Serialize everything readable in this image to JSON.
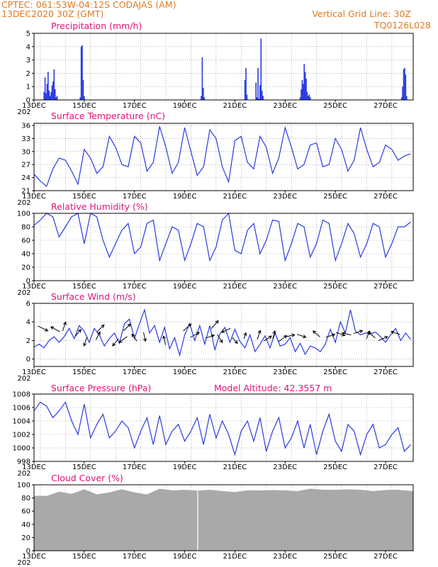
{
  "header": {
    "station": "CPTEC:   061:53W-04:12S   CODAJAS (AM)",
    "date": "13DEC2020 30Z (GMT)",
    "grid_note": "Vertical Grid Line: 30Z",
    "code": "TQ0126L028"
  },
  "colors": {
    "header": "#e07a20",
    "title": "#e0137a",
    "series": "#2a3ce0",
    "cloud": "#a9a9a9"
  },
  "x_axis": {
    "labels": [
      "13DEC",
      "15DEC",
      "17DEC",
      "19DEC",
      "21DEC",
      "23DEC",
      "25DEC",
      "27DEC"
    ],
    "label_days": [
      0,
      2,
      4,
      6,
      8,
      10,
      12,
      14
    ],
    "year_stub": "202"
  },
  "chart_data": [
    {
      "type": "bar",
      "title": "Precipitation (mm/h)",
      "ylim": [
        0,
        5
      ],
      "yticks": [
        0,
        1,
        2,
        3,
        4,
        5
      ],
      "xlim_days": [
        0,
        15.1
      ],
      "bar_width_days": 0.03,
      "x_days": [
        0.4,
        0.44,
        0.48,
        0.52,
        0.56,
        0.6,
        0.64,
        0.68,
        0.72,
        0.76,
        0.8,
        0.84,
        0.88,
        0.92,
        1.84,
        1.88,
        1.92,
        1.96,
        2.0,
        6.66,
        6.7,
        6.74,
        6.78,
        8.4,
        8.44,
        8.48,
        8.84,
        8.88,
        8.92,
        8.96,
        9.0,
        9.04,
        9.08,
        9.12,
        10.6,
        10.64,
        10.68,
        10.72,
        10.76,
        10.8,
        10.84,
        10.88,
        10.92,
        10.96,
        11.0,
        14.64,
        14.68,
        14.72,
        14.76,
        14.8,
        14.84
      ],
      "values": [
        0.6,
        1.7,
        0.5,
        1.2,
        2.1,
        0.7,
        0.3,
        0.6,
        1.1,
        1.4,
        2.3,
        0.8,
        0.2,
        0.3,
        0.2,
        4.0,
        4.1,
        1.5,
        0.3,
        0.3,
        3.2,
        0.9,
        0.2,
        1.5,
        2.4,
        0.4,
        1.3,
        0.2,
        2.4,
        0.1,
        1.1,
        4.6,
        0.7,
        0.3,
        0.2,
        0.8,
        1.5,
        1.2,
        2.7,
        2.1,
        1.6,
        0.6,
        0.3,
        0.4,
        0.2,
        0.2,
        1.0,
        2.3,
        2.4,
        1.9,
        0.3
      ]
    },
    {
      "type": "line",
      "title": "Surface Temperature (nC)",
      "ylim": [
        21,
        36.5
      ],
      "yticks": [
        21,
        24,
        27,
        30,
        33,
        36
      ],
      "xlim_days": [
        0,
        15.1
      ],
      "x_days": [
        0,
        0.25,
        0.5,
        0.75,
        1,
        1.25,
        1.5,
        1.75,
        2,
        2.25,
        2.5,
        2.75,
        3,
        3.25,
        3.5,
        3.75,
        4,
        4.25,
        4.5,
        4.75,
        5,
        5.25,
        5.5,
        5.75,
        6,
        6.25,
        6.5,
        6.75,
        7,
        7.25,
        7.5,
        7.75,
        8,
        8.25,
        8.5,
        8.75,
        9,
        9.25,
        9.5,
        9.75,
        10,
        10.25,
        10.5,
        10.75,
        11,
        11.25,
        11.5,
        11.75,
        12,
        12.25,
        12.5,
        12.75,
        13,
        13.25,
        13.5,
        13.75,
        14,
        14.25,
        14.5,
        14.75,
        15
      ],
      "values": [
        24.8,
        23.2,
        22.0,
        26.0,
        28.5,
        28.0,
        25.5,
        22.5,
        30.5,
        28.5,
        25.0,
        26.5,
        33.5,
        31.0,
        27.0,
        26.5,
        33.5,
        32.0,
        25.5,
        27.5,
        35.8,
        31.0,
        25.0,
        27.5,
        35.5,
        30.0,
        24.5,
        26.5,
        35.0,
        33.0,
        26.5,
        23.0,
        32.5,
        33.5,
        27.5,
        26.0,
        33.5,
        31.0,
        25.0,
        28.5,
        35.5,
        31.0,
        26.0,
        27.0,
        31.5,
        32.0,
        26.5,
        27.0,
        33.0,
        30.5,
        25.5,
        28.0,
        35.5,
        30.5,
        26.5,
        27.5,
        31.5,
        30.5,
        28.0,
        29.0,
        29.5
      ]
    },
    {
      "type": "line",
      "title": "Relative Humidity (%)",
      "ylim": [
        0,
        100
      ],
      "yticks": [
        0,
        20,
        40,
        60,
        80,
        100
      ],
      "xlim_days": [
        0,
        15.1
      ],
      "x_days": [
        0,
        0.25,
        0.5,
        0.75,
        1,
        1.25,
        1.5,
        1.75,
        2,
        2.25,
        2.5,
        2.75,
        3,
        3.25,
        3.5,
        3.75,
        4,
        4.25,
        4.5,
        4.75,
        5,
        5.25,
        5.5,
        5.75,
        6,
        6.25,
        6.5,
        6.75,
        7,
        7.25,
        7.5,
        7.75,
        8,
        8.25,
        8.5,
        8.75,
        9,
        9.25,
        9.5,
        9.75,
        10,
        10.25,
        10.5,
        10.75,
        11,
        11.25,
        11.5,
        11.75,
        12,
        12.25,
        12.5,
        12.75,
        13,
        13.25,
        13.5,
        13.75,
        14,
        14.25,
        14.5,
        14.75,
        15
      ],
      "values": [
        82,
        90,
        100,
        95,
        65,
        80,
        95,
        100,
        55,
        100,
        95,
        60,
        35,
        55,
        75,
        85,
        40,
        50,
        85,
        90,
        30,
        55,
        80,
        75,
        30,
        55,
        85,
        80,
        30,
        50,
        90,
        100,
        45,
        40,
        75,
        85,
        40,
        60,
        90,
        88,
        30,
        55,
        85,
        80,
        35,
        55,
        90,
        85,
        30,
        55,
        85,
        70,
        35,
        55,
        85,
        80,
        35,
        55,
        80,
        80,
        87
      ]
    },
    {
      "type": "line",
      "title": "Surface Wind (m/s)",
      "ylim": [
        -0.8,
        6
      ],
      "yticks": [
        0,
        2,
        4,
        6
      ],
      "xlim_days": [
        0,
        15.1
      ],
      "x_days": [
        0,
        0.2,
        0.4,
        0.6,
        0.8,
        1,
        1.2,
        1.4,
        1.6,
        1.8,
        2,
        2.2,
        2.4,
        2.6,
        2.8,
        3,
        3.2,
        3.4,
        3.6,
        3.8,
        4,
        4.2,
        4.4,
        4.6,
        4.8,
        5,
        5.2,
        5.4,
        5.6,
        5.8,
        6,
        6.2,
        6.4,
        6.6,
        6.8,
        7,
        7.2,
        7.4,
        7.6,
        7.8,
        8,
        8.2,
        8.4,
        8.6,
        8.8,
        9,
        9.2,
        9.4,
        9.6,
        9.8,
        10,
        10.2,
        10.4,
        10.6,
        10.8,
        11,
        11.2,
        11.4,
        11.6,
        11.8,
        12,
        12.2,
        12.4,
        12.6,
        12.8,
        13,
        13.2,
        13.4,
        13.6,
        13.8,
        14,
        14.2,
        14.4,
        14.6,
        14.8,
        15
      ],
      "values": [
        1.3,
        1.6,
        1.2,
        2.0,
        2.4,
        1.8,
        2.4,
        3.3,
        2.2,
        3.6,
        3.0,
        1.8,
        3.3,
        2.6,
        1.4,
        2.2,
        2.8,
        1.7,
        3.8,
        4.3,
        2.2,
        3.8,
        5.3,
        2.8,
        3.6,
        1.8,
        3.4,
        1.1,
        2.3,
        0.4,
        2.6,
        3.8,
        2.0,
        3.6,
        1.6,
        3.6,
        1.0,
        2.7,
        3.4,
        1.8,
        3.2,
        1.9,
        1.2,
        2.6,
        0.8,
        1.6,
        2.5,
        1.2,
        2.8,
        1.4,
        1.6,
        2.3,
        0.8,
        1.7,
        0.5,
        1.4,
        1.2,
        0.8,
        1.6,
        3.2,
        1.8,
        4.0,
        2.8,
        5.3,
        3.0,
        2.6,
        2.8,
        2.7,
        2.9,
        2.4,
        1.8,
        2.6,
        3.3,
        2.0,
        2.8,
        2.1
      ],
      "vectors": [
        {
          "x_days": 0.35,
          "y": 3.3,
          "u": 1.0,
          "v": -0.5
        },
        {
          "x_days": 0.85,
          "y": 3.2,
          "u": -0.9,
          "v": 0.5
        },
        {
          "x_days": 1.2,
          "y": 3.5,
          "u": 0.3,
          "v": 0.9
        },
        {
          "x_days": 1.75,
          "y": 2.8,
          "u": 0.6,
          "v": 0.7
        },
        {
          "x_days": 2.05,
          "y": 1.9,
          "u": -0.3,
          "v": -0.9
        },
        {
          "x_days": 2.55,
          "y": 2.5,
          "u": 0.4,
          "v": 0.8
        },
        {
          "x_days": 2.65,
          "y": 3.3,
          "u": 0.7,
          "v": 0.7
        },
        {
          "x_days": 3.25,
          "y": 1.8,
          "u": -0.6,
          "v": -0.7
        },
        {
          "x_days": 3.7,
          "y": 3.4,
          "u": 0.7,
          "v": 0.7
        },
        {
          "x_days": 3.55,
          "y": 2.1,
          "u": -0.8,
          "v": -0.6
        },
        {
          "x_days": 4.0,
          "y": 2.3,
          "u": -0.5,
          "v": 0.7
        },
        {
          "x_days": 4.4,
          "y": 2.4,
          "u": 0.2,
          "v": -0.9
        },
        {
          "x_days": 5.2,
          "y": 2.0,
          "u": -0.2,
          "v": 0.9
        },
        {
          "x_days": 6.1,
          "y": 3.4,
          "u": 0.8,
          "v": 0.7
        },
        {
          "x_days": 6.4,
          "y": 2.6,
          "u": 0.9,
          "v": 0.5
        },
        {
          "x_days": 7.0,
          "y": 2.4,
          "u": 0.9,
          "v": 0.3
        },
        {
          "x_days": 7.2,
          "y": 3.7,
          "u": 0.7,
          "v": 0.8
        },
        {
          "x_days": 7.4,
          "y": 2.2,
          "u": 0.5,
          "v": -0.8
        },
        {
          "x_days": 7.65,
          "y": 3.1,
          "u": -0.9,
          "v": -0.4
        },
        {
          "x_days": 8.0,
          "y": 2.0,
          "u": 0.5,
          "v": -0.6
        },
        {
          "x_days": 8.4,
          "y": 2.5,
          "u": 0.2,
          "v": 0.6
        },
        {
          "x_days": 8.95,
          "y": 2.6,
          "u": 0.3,
          "v": 0.9
        },
        {
          "x_days": 9.3,
          "y": 2.2,
          "u": 0.8,
          "v": 0.5
        },
        {
          "x_days": 9.55,
          "y": 2.6,
          "u": 0.2,
          "v": 0.8
        },
        {
          "x_days": 9.9,
          "y": 2.2,
          "u": 0.8,
          "v": 0.6
        },
        {
          "x_days": 10.2,
          "y": 2.5,
          "u": 0.9,
          "v": 0.2
        },
        {
          "x_days": 10.65,
          "y": 2.5,
          "u": 0.9,
          "v": -0.3
        },
        {
          "x_days": 11.25,
          "y": 2.7,
          "u": -0.7,
          "v": 0.6
        },
        {
          "x_days": 11.8,
          "y": 2.5,
          "u": 0.9,
          "v": 0.3
        },
        {
          "x_days": 12.2,
          "y": 2.7,
          "u": 0.9,
          "v": -0.3
        },
        {
          "x_days": 12.45,
          "y": 2.7,
          "u": -0.9,
          "v": 0.2
        },
        {
          "x_days": 12.9,
          "y": 2.9,
          "u": 0.9,
          "v": 0.3
        },
        {
          "x_days": 13.3,
          "y": 2.6,
          "u": 0.3,
          "v": 0.8
        },
        {
          "x_days": 13.45,
          "y": 2.6,
          "u": -0.7,
          "v": 0.6
        },
        {
          "x_days": 13.9,
          "y": 2.2,
          "u": 0.9,
          "v": 0.4
        },
        {
          "x_days": 14.4,
          "y": 2.8,
          "u": -0.9,
          "v": 0.3
        }
      ]
    },
    {
      "type": "line",
      "title": "Surface Pressure (hPa)",
      "note": "Model Altitude: 42.3557 m",
      "ylim": [
        998,
        1008
      ],
      "yticks": [
        998,
        1000,
        1002,
        1004,
        1006,
        1008
      ],
      "xlim_days": [
        0,
        15.1
      ],
      "x_days": [
        0,
        0.25,
        0.5,
        0.75,
        1,
        1.25,
        1.5,
        1.75,
        2,
        2.25,
        2.5,
        2.75,
        3,
        3.25,
        3.5,
        3.75,
        4,
        4.25,
        4.5,
        4.75,
        5,
        5.25,
        5.5,
        5.75,
        6,
        6.25,
        6.5,
        6.75,
        7,
        7.25,
        7.5,
        7.75,
        8,
        8.25,
        8.5,
        8.75,
        9,
        9.25,
        9.5,
        9.75,
        10,
        10.25,
        10.5,
        10.75,
        11,
        11.25,
        11.5,
        11.75,
        12,
        12.25,
        12.5,
        12.75,
        13,
        13.25,
        13.5,
        13.75,
        14,
        14.25,
        14.5,
        14.75,
        15
      ],
      "values": [
        1005.5,
        1006.8,
        1006.2,
        1004.5,
        1005.5,
        1006.8,
        1004.0,
        1002.0,
        1006.5,
        1001.5,
        1003.5,
        1005.0,
        1001.5,
        1002.5,
        1004.0,
        1003.0,
        1000.0,
        1002.5,
        1004.5,
        1000.5,
        1004.8,
        1000.5,
        1002.5,
        1003.5,
        1001.0,
        1002.5,
        1004.5,
        1000.5,
        1005.0,
        1001.5,
        1004.0,
        1002.0,
        999.0,
        1002.5,
        1004.0,
        1001.0,
        1004.5,
        999.5,
        1002.5,
        1004.5,
        1000.0,
        1001.5,
        1004.0,
        1000.0,
        1003.5,
        999.0,
        1002.5,
        1005.0,
        1001.0,
        999.5,
        1003.5,
        1002.5,
        999.0,
        1002.0,
        1003.5,
        1000.0,
        1000.5,
        1002.0,
        1003.0,
        999.5,
        1000.5
      ]
    },
    {
      "type": "area",
      "title": "Cloud Cover (%)",
      "ylim": [
        0,
        100
      ],
      "yticks": [
        0,
        20,
        40,
        60,
        80,
        100
      ],
      "xlim_days": [
        0,
        15.1
      ],
      "x_days": [
        0,
        0.5,
        1,
        1.5,
        2,
        2.5,
        3,
        3.5,
        4,
        4.5,
        5,
        5.5,
        6,
        6.5,
        7,
        7.5,
        8,
        8.5,
        9,
        9.5,
        10,
        10.5,
        11,
        11.5,
        12,
        12.5,
        13,
        13.5,
        14,
        14.5,
        15.1
      ],
      "values": [
        85,
        82,
        90,
        88,
        92,
        86,
        90,
        92,
        89,
        87,
        93,
        92,
        94,
        90,
        93,
        92,
        88,
        92,
        93,
        91,
        92,
        92,
        93,
        93,
        94,
        92,
        93,
        92,
        91,
        93,
        92
      ],
      "gaps_days": [
        6.52
      ]
    }
  ]
}
